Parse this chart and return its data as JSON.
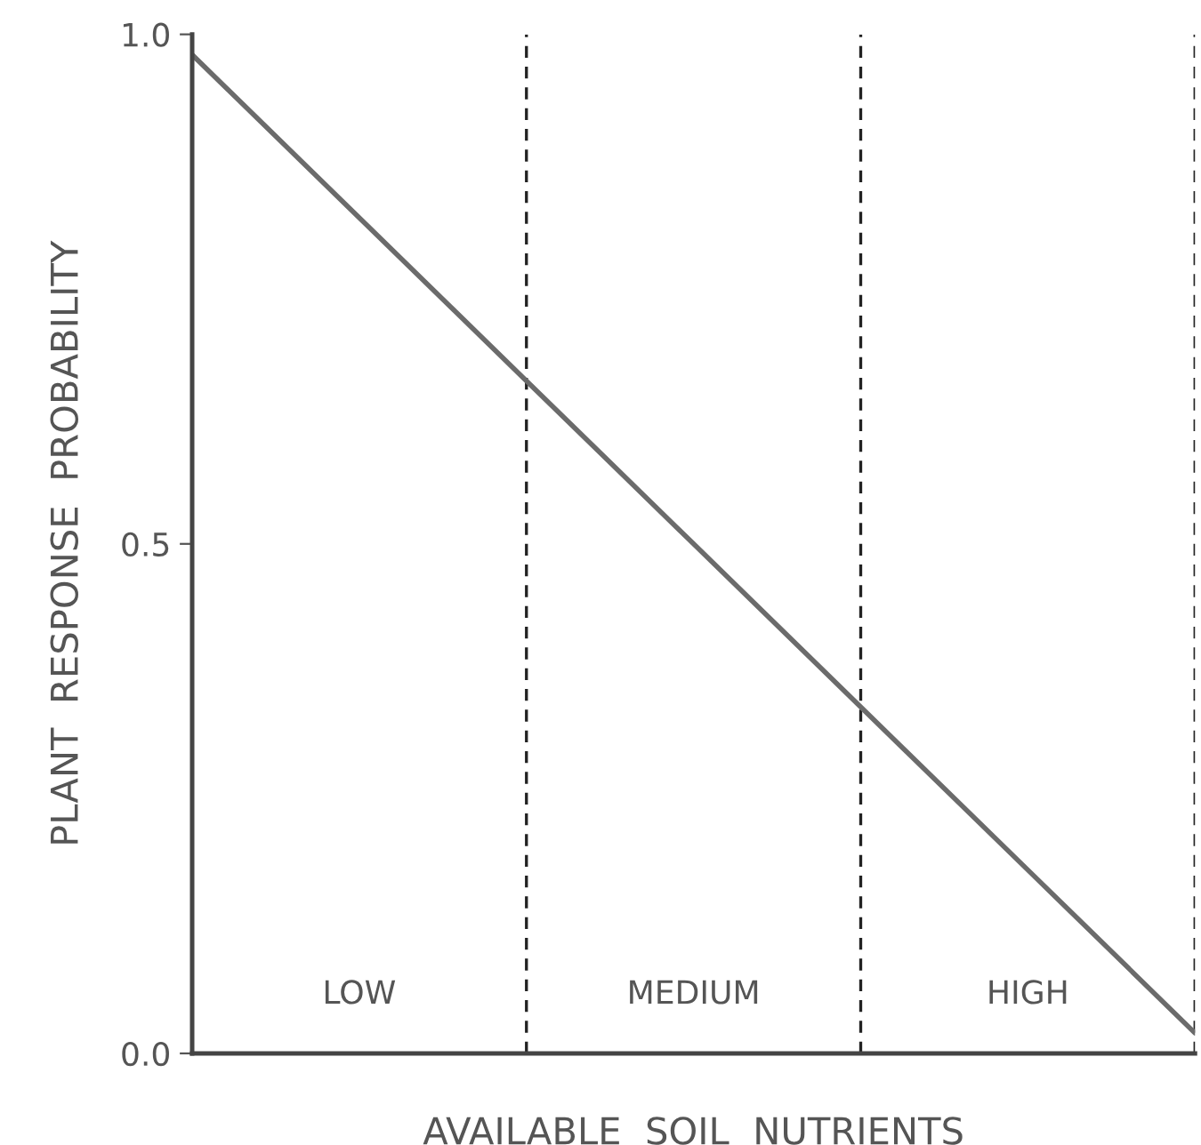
{
  "chart_data": {
    "type": "line",
    "xlabel": "AVAILABLE  SOIL  NUTRIENTS",
    "ylabel": "PLANT  RESPONSE  PROBABILITY",
    "categories": [
      null,
      "LOW",
      null,
      "MEDIUM",
      null,
      "HIGH",
      null
    ],
    "series": [
      {
        "color": "#6b6b6b",
        "values": [
          0.98,
          0.82,
          0.66,
          0.5,
          0.34,
          0.18,
          0.02
        ]
      }
    ],
    "ylim": [
      0,
      1
    ],
    "yticks": [
      {
        "value": 0,
        "label": "0.0"
      },
      {
        "value": 0.5,
        "label": "0.5"
      },
      {
        "value": 1,
        "label": "1.0"
      }
    ],
    "grid": "x",
    "legend": false,
    "marker": "none",
    "line_style": "solid"
  }
}
